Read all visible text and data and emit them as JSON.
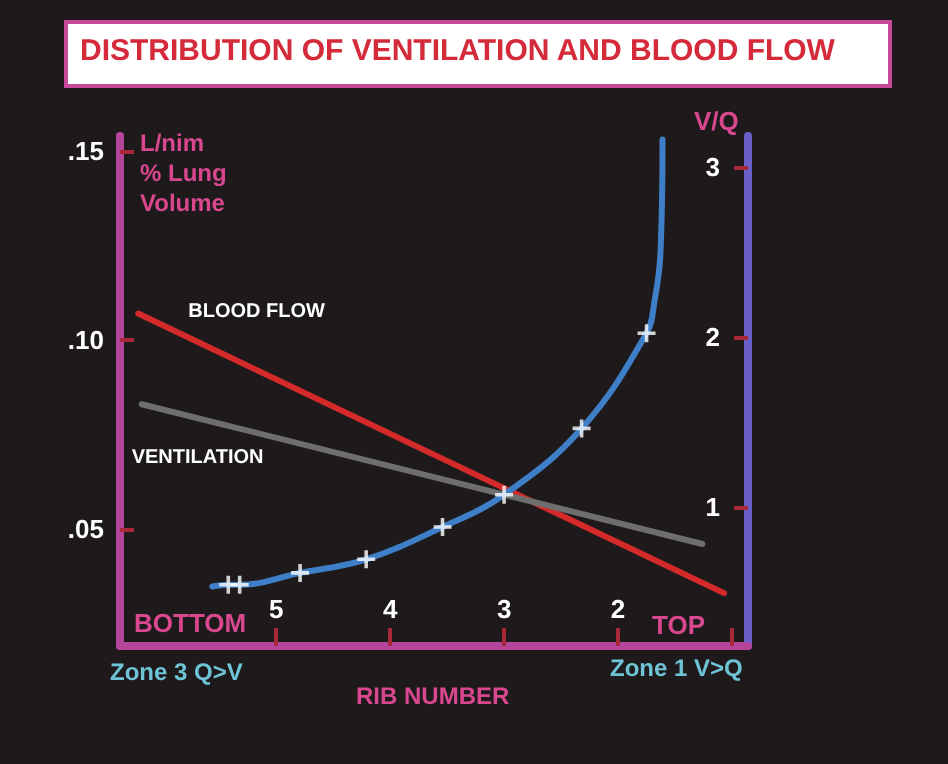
{
  "chart_data": {
    "type": "line",
    "title": "DISTRIBUTION OF VENTILATION AND BLOOD FLOW",
    "xlabel": "RIB NUMBER",
    "ylabel": "L/nim % Lung Volume",
    "y2label": "V/Q",
    "xlim": [
      6.37,
      0.86
    ],
    "xticks": [
      5,
      4,
      3,
      2,
      {
        "value": 1,
        "label": null
      }
    ],
    "ylim": [
      0.019,
      0.154
    ],
    "yticks": [
      {
        "value": 0.05,
        "label": ".05"
      },
      {
        "value": 0.1,
        "label": ".10"
      },
      {
        "value": 0.15,
        "label": ".15"
      }
    ],
    "y2lim": [
      0.18,
      3.18
    ],
    "y2ticks": [
      1,
      2,
      3
    ],
    "series": [
      {
        "name": "BLOOD FLOW",
        "color": "#d42a2a",
        "x": [
          6.21,
          1.07
        ],
        "values": [
          0.107,
          0.033
        ],
        "marker": "none"
      },
      {
        "name": "VENTILATION",
        "color": "#6e6e6e",
        "x": [
          6.18,
          1.26
        ],
        "values": [
          0.083,
          0.046
        ],
        "marker": "none"
      },
      {
        "axis": "y2",
        "color": "#3f7fc7",
        "x": [
          5.56,
          5.42,
          5.32,
          4.79,
          4.21,
          3.54,
          3.0,
          2.32,
          1.75,
          1.68,
          1.63,
          1.61
        ],
        "values": [
          0.53,
          0.54,
          0.54,
          0.61,
          0.69,
          0.88,
          1.07,
          1.46,
          2.02,
          2.21,
          2.47,
          3.16
        ],
        "marker": "none"
      },
      {
        "type": "scatter",
        "axis": "y2",
        "color": "#ffffff",
        "x": [
          5.42,
          5.32,
          4.79,
          4.21,
          3.54,
          3.0,
          2.32,
          1.75
        ],
        "values": [
          0.54,
          0.54,
          0.61,
          0.69,
          0.88,
          1.07,
          1.46,
          2.02
        ],
        "marker": "cross"
      }
    ],
    "annotations": [
      "BOTTOM",
      "TOP",
      "Zone 3 Q>V",
      "Zone 1 V>Q"
    ],
    "grid": false,
    "legend": false
  }
}
